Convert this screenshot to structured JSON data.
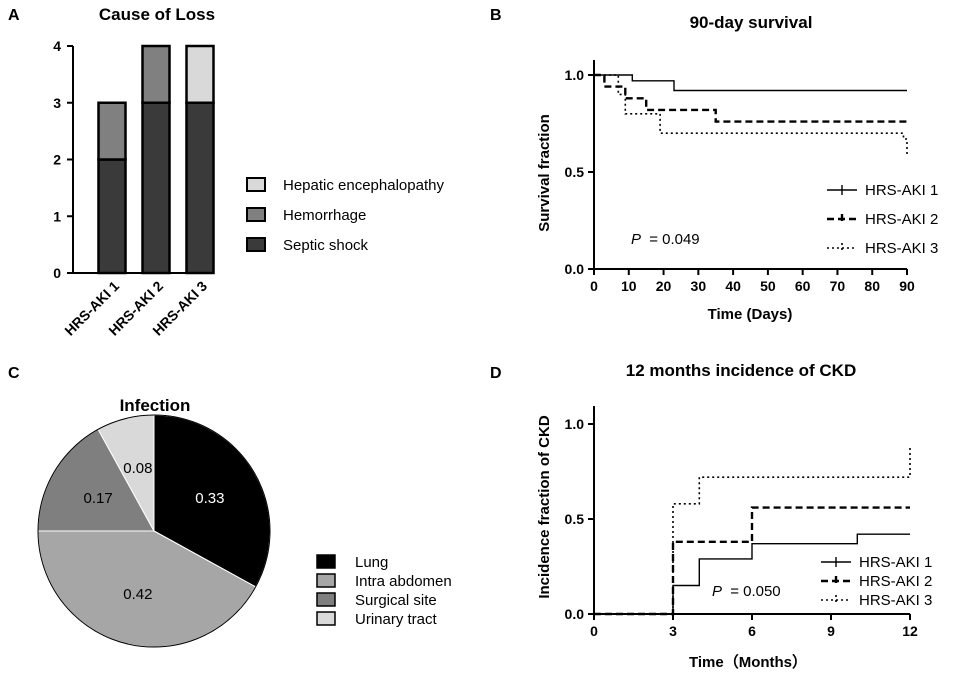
{
  "panels": {
    "a": "A",
    "b": "B",
    "c": "C",
    "d": "D"
  },
  "colors": {
    "septic": "#3a3a3a",
    "hemorrhage": "#808080",
    "hepatic": "#d9d9d9",
    "lung": "#000000",
    "intra": "#a6a6a6",
    "surgical": "#7f7f7f",
    "urinary": "#d9d9d9"
  },
  "chart_data": [
    {
      "id": "cause_of_loss",
      "type": "bar",
      "stacked": true,
      "title": "Cause of Loss",
      "categories": [
        "HRS-AKI 1",
        "HRS-AKI 2",
        "HRS-AKI 3"
      ],
      "series": [
        {
          "name": "Septic shock",
          "values": [
            2,
            3,
            3
          ]
        },
        {
          "name": "Hemorrhage",
          "values": [
            1,
            1,
            0
          ]
        },
        {
          "name": "Hepatic encephalopathy",
          "values": [
            0,
            0,
            1
          ]
        }
      ],
      "legend_order": [
        "Hepatic encephalopathy",
        "Hemorrhage",
        "Septic shock"
      ],
      "ylim": [
        0,
        4
      ],
      "yticks": [
        "0",
        "1",
        "2",
        "3",
        "4"
      ]
    },
    {
      "id": "survival",
      "type": "line",
      "title": "90-day  survival",
      "xlabel": "Time (Days)",
      "ylabel": "Survival fraction",
      "xlim": [
        0,
        90
      ],
      "ylim": [
        0,
        1
      ],
      "xticks": [
        "0",
        "10",
        "20",
        "30",
        "40",
        "50",
        "60",
        "70",
        "80",
        "90"
      ],
      "yticks": [
        "0.0",
        "0.5",
        "1.0"
      ],
      "series": [
        {
          "name": "HRS-AKI 1",
          "style": "solid",
          "x": [
            0,
            11,
            11,
            23,
            23,
            90
          ],
          "y": [
            1.0,
            1.0,
            0.97,
            0.97,
            0.92,
            0.92
          ]
        },
        {
          "name": "HRS-AKI 2",
          "style": "dashed",
          "x": [
            0,
            3,
            3,
            9,
            9,
            15,
            15,
            35,
            35,
            49,
            49,
            90
          ],
          "y": [
            1.0,
            1.0,
            0.94,
            0.94,
            0.88,
            0.88,
            0.82,
            0.82,
            0.76,
            0.76,
            0.76,
            0.76
          ]
        },
        {
          "name": "HRS-AKI 3",
          "style": "dotted",
          "x": [
            0,
            7,
            7,
            9,
            9,
            19,
            19,
            89,
            89,
            90,
            90
          ],
          "y": [
            1.0,
            1.0,
            0.9,
            0.9,
            0.8,
            0.8,
            0.7,
            0.7,
            0.67,
            0.67,
            0.59
          ]
        }
      ],
      "p_prefix": "P",
      "p_value": "= 0.049"
    },
    {
      "id": "infection",
      "type": "pie",
      "title": "Infection",
      "labels": [
        "Lung",
        "Intra abdomen",
        "Surgical site",
        "Urinary tract"
      ],
      "values": [
        0.33,
        0.42,
        0.17,
        0.08
      ],
      "display": [
        "0.33",
        "0.42",
        "0.17",
        "0.08"
      ]
    },
    {
      "id": "ckd",
      "type": "line",
      "title": "12 months incidence of CKD",
      "xlabel": "Time（Months）",
      "ylabel": "Incidence fraction of CKD",
      "xlim": [
        0,
        12
      ],
      "ylim": [
        0,
        1
      ],
      "xticks": [
        "0",
        "3",
        "6",
        "9",
        "12"
      ],
      "yticks": [
        "0.0",
        "0.5",
        "1.0"
      ],
      "series": [
        {
          "name": "HRS-AKI 1",
          "style": "solid",
          "x": [
            0,
            3,
            3,
            4,
            4,
            6,
            6,
            10,
            10,
            12
          ],
          "y": [
            0,
            0,
            0.15,
            0.15,
            0.29,
            0.29,
            0.37,
            0.37,
            0.42,
            0.42
          ]
        },
        {
          "name": "HRS-AKI 2",
          "style": "dashed",
          "x": [
            0,
            3,
            3,
            6,
            6,
            12
          ],
          "y": [
            0,
            0,
            0.38,
            0.38,
            0.56,
            0.56
          ]
        },
        {
          "name": "HRS-AKI 3",
          "style": "dotted",
          "x": [
            0,
            3,
            3,
            4,
            4,
            12,
            12
          ],
          "y": [
            0,
            0,
            0.58,
            0.58,
            0.72,
            0.72,
            0.88
          ]
        }
      ],
      "p_prefix": "P",
      "p_value": "= 0.050"
    }
  ]
}
